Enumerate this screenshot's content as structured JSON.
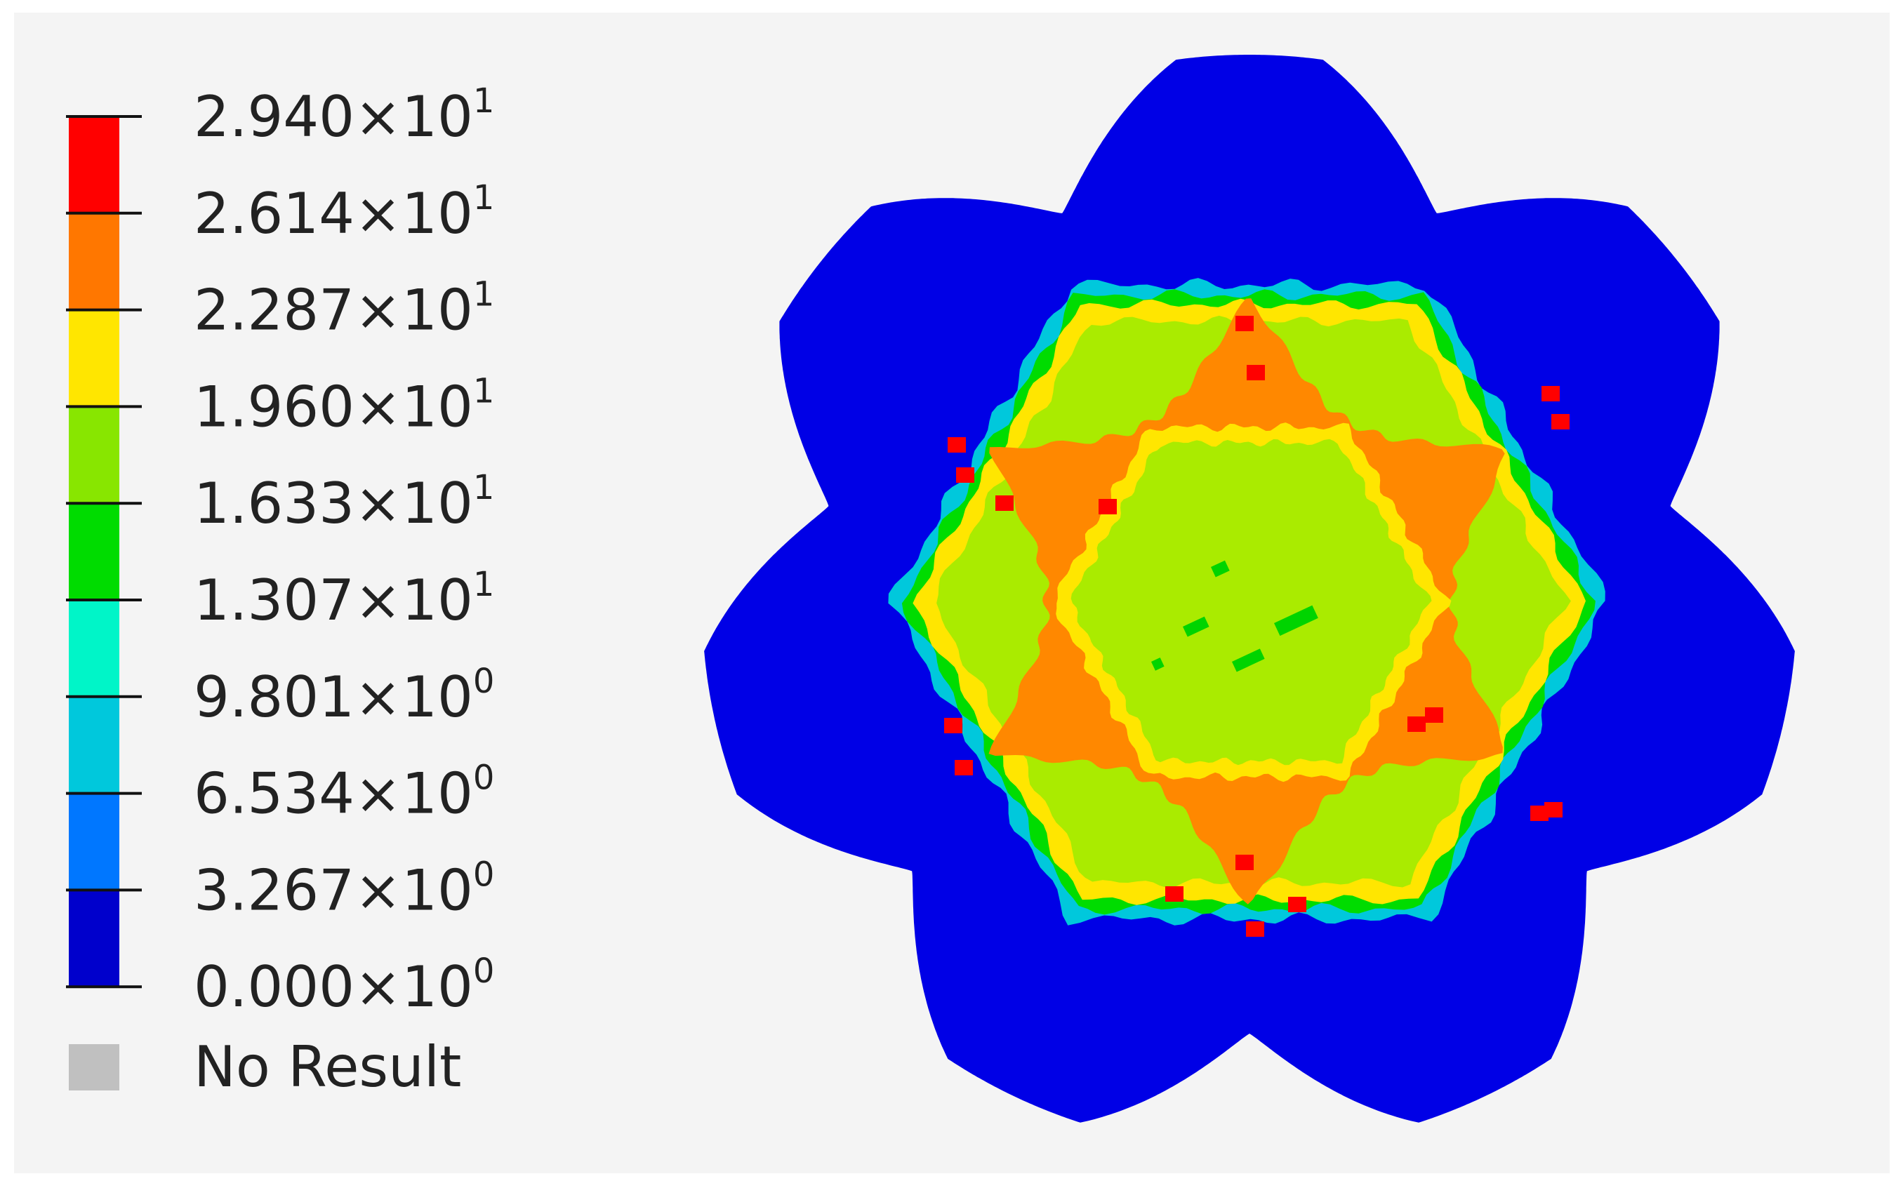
{
  "legend": {
    "bands": [
      {
        "color": "#0000cc",
        "name": "band-0"
      },
      {
        "color": "#0077ff",
        "name": "band-1"
      },
      {
        "color": "#00c8dc",
        "name": "band-2"
      },
      {
        "color": "#00f5c8",
        "name": "band-3"
      },
      {
        "color": "#00dc00",
        "name": "band-4"
      },
      {
        "color": "#88e600",
        "name": "band-5"
      },
      {
        "color": "#ffe600",
        "name": "band-6"
      },
      {
        "color": "#ff7700",
        "name": "band-7"
      },
      {
        "color": "#ff0000",
        "name": "band-8"
      }
    ],
    "labels": [
      {
        "mantissa": "2.940",
        "times": "×10",
        "exponent": "1"
      },
      {
        "mantissa": "2.614",
        "times": "×10",
        "exponent": "1"
      },
      {
        "mantissa": "2.287",
        "times": "×10",
        "exponent": "1"
      },
      {
        "mantissa": "1.960",
        "times": "×10",
        "exponent": "1"
      },
      {
        "mantissa": "1.633",
        "times": "×10",
        "exponent": "1"
      },
      {
        "mantissa": "1.307",
        "times": "×10",
        "exponent": "1"
      },
      {
        "mantissa": "9.801",
        "times": "×10",
        "exponent": "0"
      },
      {
        "mantissa": "6.534",
        "times": "×10",
        "exponent": "0"
      },
      {
        "mantissa": "3.267",
        "times": "×10",
        "exponent": "0"
      },
      {
        "mantissa": "0.000",
        "times": "×10",
        "exponent": "0"
      }
    ],
    "no_result": {
      "label": "No Result",
      "color": "#c0c0c0"
    }
  },
  "contour": {
    "gear_color": "#0000e6",
    "teeth": 7,
    "zone_colors": {
      "edge_cyan": "#00c8dc",
      "edge_green": "#00dc00",
      "outer_yellow": "#ffe600",
      "pale_green": "#aaeb00",
      "orange": "#ff8800",
      "inner_yellow": "#ffe600",
      "center_green": "#aaeb00",
      "spot_green": "#00d400",
      "hot_red": "#ff0000"
    }
  }
}
